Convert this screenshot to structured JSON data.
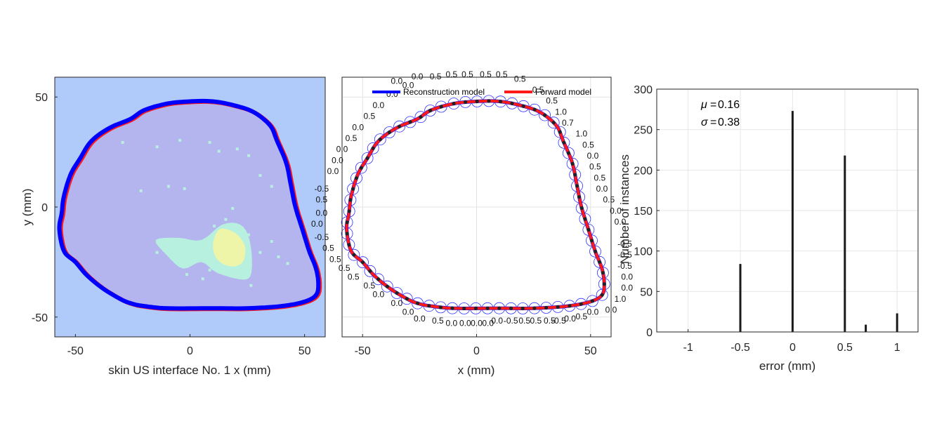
{
  "chart_data": [
    {
      "type": "area",
      "xlabel": "skin US interface No. 1 x (mm)",
      "ylabel": "y (mm)",
      "xlim": [
        -59,
        59
      ],
      "ylim": [
        -59,
        59
      ],
      "xticks": [
        -50,
        0,
        50
      ],
      "yticks": [
        50,
        0,
        -50
      ],
      "background_color": "#b0cbfa",
      "region_color": "#b4b4ee",
      "reconstruction_color": "#0000ff",
      "forward_color": "#ff1a1a",
      "speckle_color": "#b8f0e0",
      "hotspot_color": "#eef5a8",
      "contour": [
        [
          -10,
          47
        ],
        [
          0,
          48
        ],
        [
          10,
          48
        ],
        [
          20,
          46
        ],
        [
          28,
          43
        ],
        [
          35,
          37
        ],
        [
          38,
          30
        ],
        [
          42,
          20
        ],
        [
          44,
          10
        ],
        [
          46,
          0
        ],
        [
          49,
          -10
        ],
        [
          52,
          -20
        ],
        [
          55,
          -28
        ],
        [
          56,
          -35
        ],
        [
          55,
          -40
        ],
        [
          50,
          -43
        ],
        [
          40,
          -45
        ],
        [
          25,
          -46
        ],
        [
          10,
          -46
        ],
        [
          -10,
          -46
        ],
        [
          -20,
          -45
        ],
        [
          -25,
          -44
        ],
        [
          -30,
          -42
        ],
        [
          -38,
          -37
        ],
        [
          -45,
          -31
        ],
        [
          -50,
          -25
        ],
        [
          -55,
          -20
        ],
        [
          -57,
          -10
        ],
        [
          -56,
          -3
        ],
        [
          -55,
          5
        ],
        [
          -52,
          15
        ],
        [
          -48,
          22
        ],
        [
          -43,
          30
        ],
        [
          -35,
          36
        ],
        [
          -26,
          40
        ],
        [
          -20,
          44
        ]
      ]
    },
    {
      "type": "line",
      "xlabel": "x (mm)",
      "xlim": [
        -59,
        59
      ],
      "ylim": [
        -59,
        59
      ],
      "xticks": [
        -50,
        0,
        50
      ],
      "legend": [
        "Reconstruction model",
        "Forward model"
      ],
      "legend_position": "top",
      "annotations": [
        {
          "t": "0.5",
          "x": -18,
          "y": 58
        },
        {
          "t": "0.5",
          "x": -11,
          "y": 59
        },
        {
          "t": "0.5",
          "x": -4,
          "y": 59
        },
        {
          "t": "0.5",
          "x": 4,
          "y": 59
        },
        {
          "t": "0.5",
          "x": 11,
          "y": 59
        },
        {
          "t": "0.5",
          "x": 19,
          "y": 57
        },
        {
          "t": "0.0",
          "x": -30,
          "y": 54
        },
        {
          "t": "0.0",
          "x": -37,
          "y": 50
        },
        {
          "t": "0.0",
          "x": -43,
          "y": 45
        },
        {
          "t": "0.5",
          "x": -47,
          "y": 40
        },
        {
          "t": "0.0",
          "x": -52,
          "y": 35
        },
        {
          "t": "0.5",
          "x": -55,
          "y": 30
        },
        {
          "t": "0.0",
          "x": -59,
          "y": 25
        },
        {
          "t": "0.0",
          "x": -61,
          "y": 20
        },
        {
          "t": "0.0",
          "x": -63,
          "y": 15
        },
        {
          "t": "-0.5",
          "x": -68,
          "y": 7
        },
        {
          "t": "0.5",
          "x": -68,
          "y": 2
        },
        {
          "t": "0.0",
          "x": -68,
          "y": -4
        },
        {
          "t": "0.0",
          "x": -70,
          "y": -9
        },
        {
          "t": "-0.5",
          "x": -68,
          "y": -15
        },
        {
          "t": "0.5",
          "x": -65,
          "y": -20
        },
        {
          "t": "0.5",
          "x": -62,
          "y": -25
        },
        {
          "t": "0.5",
          "x": -58,
          "y": -29
        },
        {
          "t": "0.5",
          "x": -54,
          "y": -33
        },
        {
          "t": "0.5",
          "x": -47,
          "y": -37
        },
        {
          "t": "0.0",
          "x": -43,
          "y": -41
        },
        {
          "t": "0.0",
          "x": -35,
          "y": -45
        },
        {
          "t": "0.0",
          "x": -30,
          "y": -49
        },
        {
          "t": "0.0",
          "x": -25,
          "y": -52
        },
        {
          "t": "0.5",
          "x": -17,
          "y": -53
        },
        {
          "t": "0.0",
          "x": -11,
          "y": -54
        },
        {
          "t": "0.0",
          "x": -5,
          "y": -54
        },
        {
          "t": "0.0",
          "x": 0,
          "y": -54
        },
        {
          "t": "0.0",
          "x": 5,
          "y": -54
        },
        {
          "t": "0.0",
          "x": 9,
          "y": -53
        },
        {
          "t": "-0.5",
          "x": 15,
          "y": -53
        },
        {
          "t": "0.5",
          "x": 21,
          "y": -53
        },
        {
          "t": "0.5",
          "x": 26,
          "y": -53
        },
        {
          "t": "0.5",
          "x": 32,
          "y": -53
        },
        {
          "t": "-0.5",
          "x": 36,
          "y": -53
        },
        {
          "t": "0.0",
          "x": 41,
          "y": -52
        },
        {
          "t": "0.5",
          "x": 46,
          "y": -51
        },
        {
          "t": "0.0",
          "x": 51,
          "y": -49
        },
        {
          "t": "0.0",
          "x": 59,
          "y": -48
        },
        {
          "t": "1.0",
          "x": 63,
          "y": -43
        },
        {
          "t": "0.0",
          "x": 66,
          "y": -38
        },
        {
          "t": "0.0",
          "x": 66,
          "y": -33
        },
        {
          "t": "-0.5",
          "x": 65,
          "y": -28
        },
        {
          "t": "-0.5",
          "x": 65,
          "y": -23
        },
        {
          "t": "-0.5",
          "x": 65,
          "y": -18
        },
        {
          "t": "0.0",
          "x": 63,
          "y": -8
        },
        {
          "t": "0.0",
          "x": 61,
          "y": -3
        },
        {
          "t": "0.5",
          "x": 58,
          "y": 2
        },
        {
          "t": "0.0",
          "x": 55,
          "y": 7
        },
        {
          "t": "0.5",
          "x": 54,
          "y": 12
        },
        {
          "t": "0.5",
          "x": 52,
          "y": 17
        },
        {
          "t": "0.0",
          "x": 51,
          "y": 22
        },
        {
          "t": "0.5",
          "x": 49,
          "y": 27
        },
        {
          "t": "1.0",
          "x": 46,
          "y": 32
        },
        {
          "t": "0.7",
          "x": 40,
          "y": 37
        },
        {
          "t": "1.0",
          "x": 37,
          "y": 42
        },
        {
          "t": "0.5",
          "x": 33,
          "y": 47
        },
        {
          "t": "0.5",
          "x": 27,
          "y": 52
        },
        {
          "t": "0.0",
          "x": -35,
          "y": 56
        },
        {
          "t": "0.0",
          "x": -26,
          "y": 58
        }
      ]
    },
    {
      "type": "bar",
      "xlabel": "error (mm)",
      "ylabel": "Number of instances",
      "xlim": [
        -1.3,
        1.2
      ],
      "ylim": [
        0,
        300
      ],
      "xticks": [
        -1,
        -0.5,
        0,
        0.5,
        1
      ],
      "yticks": [
        0,
        50,
        100,
        150,
        200,
        250,
        300
      ],
      "grid": true,
      "x": [
        -0.5,
        0,
        0.5,
        0.7,
        1
      ],
      "values": [
        84,
        273,
        218,
        9,
        23
      ],
      "stats": {
        "mu": "0.16",
        "sigma": "0.38"
      }
    }
  ]
}
